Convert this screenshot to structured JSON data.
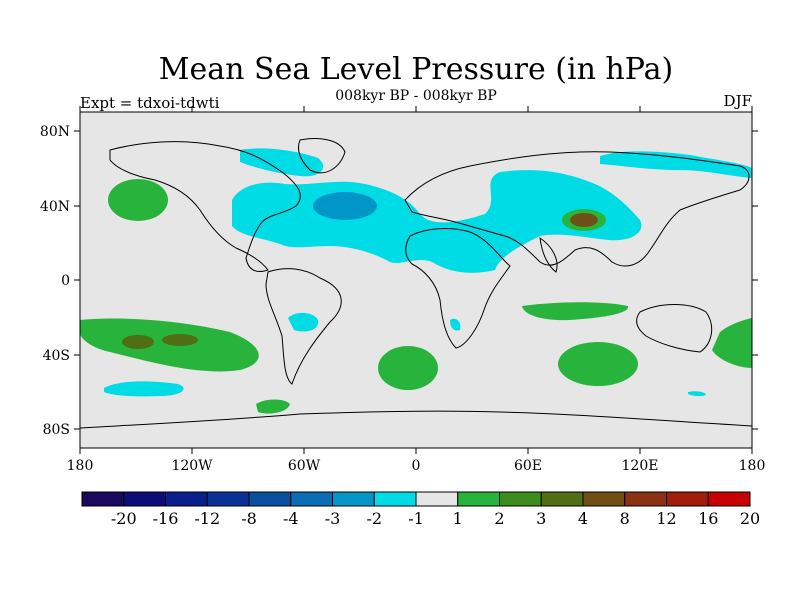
{
  "map": {
    "title": "Mean Sea Level Pressure (in hPa)",
    "subtitle": "008kyr BP - 008kyr BP",
    "left_label": "Expt = tdxoi-tdwti",
    "right_label": "DJF",
    "lat_ticks": [
      "80N",
      "40N",
      "0",
      "40S",
      "80S"
    ],
    "lon_ticks": [
      "180",
      "120W",
      "60W",
      "0",
      "60E",
      "120E",
      "180"
    ],
    "background_color": "#e6e6e6",
    "coastline_color": "#000000"
  },
  "colorbar": {
    "labels": [
      "-20",
      "-16",
      "-12",
      "-8",
      "-4",
      "-3",
      "-2",
      "-1",
      "1",
      "2",
      "3",
      "4",
      "8",
      "12",
      "16",
      "20"
    ],
    "colors": [
      "#1a0a5e",
      "#0d0d7a",
      "#0a1e8c",
      "#0a3296",
      "#0a50a0",
      "#0a6eb4",
      "#0096c8",
      "#00dce6",
      "#e6e6e6",
      "#28b43c",
      "#3c8c1e",
      "#506e14",
      "#6e5014",
      "#8c3214",
      "#a01e0a",
      "#c80000"
    ]
  }
}
